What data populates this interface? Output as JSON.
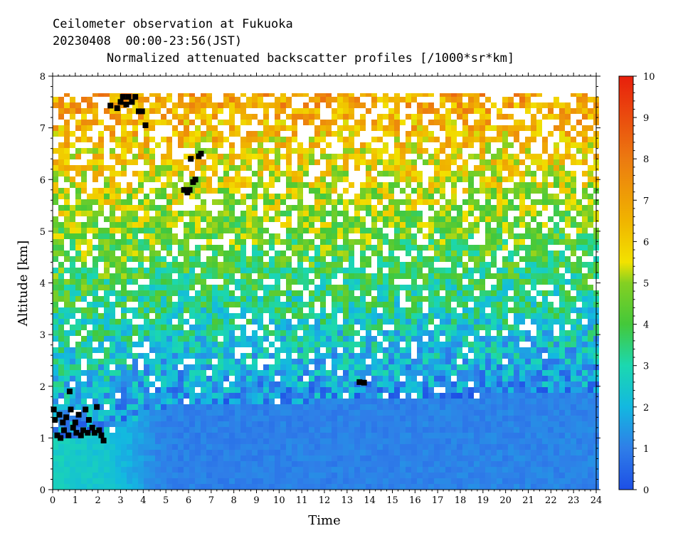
{
  "header": {
    "line1": "Ceilometer observation at Fukuoka",
    "line2": "20230408  00:00-23:56(JST)",
    "line3": "Normalized attenuated backscatter profiles [/1000*sr*km]"
  },
  "chart_data": {
    "type": "heatmap",
    "title": "Normalized attenuated backscatter profiles [/1000*sr*km]",
    "xlabel": "Time",
    "ylabel": "Altitude [km]",
    "xlim": [
      0,
      24
    ],
    "ylim": [
      0,
      8
    ],
    "x_ticks": [
      "0",
      "1",
      "2",
      "3",
      "4",
      "5",
      "6",
      "7",
      "8",
      "9",
      "10",
      "11",
      "12",
      "13",
      "14",
      "15",
      "16",
      "17",
      "18",
      "19",
      "20",
      "21",
      "22",
      "23",
      "24"
    ],
    "y_ticks": [
      "0",
      "1",
      "2",
      "3",
      "4",
      "5",
      "6",
      "7",
      "8"
    ],
    "data_top_altitude_km": 7.67,
    "colorbar": {
      "range": [
        0,
        10
      ],
      "ticks": [
        "0",
        "1",
        "2",
        "3",
        "4",
        "5",
        "6",
        "7",
        "8",
        "9",
        "10"
      ],
      "stops": [
        {
          "v": 0,
          "color": "#1d4fe6"
        },
        {
          "v": 1,
          "color": "#2f7ee8"
        },
        {
          "v": 2,
          "color": "#13b8e0"
        },
        {
          "v": 3,
          "color": "#1bd8b0"
        },
        {
          "v": 4,
          "color": "#44c83a"
        },
        {
          "v": 5,
          "color": "#84d022"
        },
        {
          "v": 5.5,
          "color": "#f2e200"
        },
        {
          "v": 6.5,
          "color": "#f0b400"
        },
        {
          "v": 8,
          "color": "#ec7a10"
        },
        {
          "v": 10,
          "color": "#e81f0c"
        }
      ]
    },
    "background_profile": [
      {
        "t": 0,
        "bl_top": 1.0,
        "bl_value": 2.7
      },
      {
        "t": 2.5,
        "bl_top": 1.1,
        "bl_value": 2.3
      },
      {
        "t": 5,
        "bl_top": 1.6,
        "bl_value": 1.0
      },
      {
        "t": 24,
        "bl_top": 1.9,
        "bl_value": 1.1
      }
    ],
    "cloud_points": [
      {
        "t": 0.05,
        "alt": 1.55
      },
      {
        "t": 0.1,
        "alt": 1.35
      },
      {
        "t": 0.2,
        "alt": 1.05
      },
      {
        "t": 0.3,
        "alt": 1.45
      },
      {
        "t": 0.35,
        "alt": 1.0
      },
      {
        "t": 0.45,
        "alt": 1.3
      },
      {
        "t": 0.5,
        "alt": 1.15
      },
      {
        "t": 0.6,
        "alt": 1.4
      },
      {
        "t": 0.7,
        "alt": 1.05
      },
      {
        "t": 0.75,
        "alt": 1.9
      },
      {
        "t": 0.8,
        "alt": 1.55
      },
      {
        "t": 0.9,
        "alt": 1.2
      },
      {
        "t": 1.0,
        "alt": 1.3
      },
      {
        "t": 1.05,
        "alt": 1.1
      },
      {
        "t": 1.15,
        "alt": 1.45
      },
      {
        "t": 1.25,
        "alt": 1.05
      },
      {
        "t": 1.35,
        "alt": 1.15
      },
      {
        "t": 1.45,
        "alt": 1.55
      },
      {
        "t": 1.55,
        "alt": 1.1
      },
      {
        "t": 1.6,
        "alt": 1.35
      },
      {
        "t": 1.75,
        "alt": 1.2
      },
      {
        "t": 1.85,
        "alt": 1.1
      },
      {
        "t": 1.95,
        "alt": 1.6
      },
      {
        "t": 2.05,
        "alt": 1.15
      },
      {
        "t": 2.15,
        "alt": 1.05
      },
      {
        "t": 2.25,
        "alt": 0.95
      },
      {
        "t": 2.55,
        "alt": 7.43
      },
      {
        "t": 2.85,
        "alt": 7.38
      },
      {
        "t": 3.0,
        "alt": 7.5
      },
      {
        "t": 3.1,
        "alt": 7.6
      },
      {
        "t": 3.25,
        "alt": 7.45
      },
      {
        "t": 3.35,
        "alt": 7.6
      },
      {
        "t": 3.5,
        "alt": 7.5
      },
      {
        "t": 3.65,
        "alt": 7.6
      },
      {
        "t": 3.8,
        "alt": 7.32
      },
      {
        "t": 3.95,
        "alt": 7.32
      },
      {
        "t": 4.1,
        "alt": 7.05
      },
      {
        "t": 5.8,
        "alt": 5.8
      },
      {
        "t": 5.95,
        "alt": 5.75
      },
      {
        "t": 6.05,
        "alt": 5.8
      },
      {
        "t": 6.1,
        "alt": 6.4
      },
      {
        "t": 6.2,
        "alt": 5.95
      },
      {
        "t": 6.3,
        "alt": 6.0
      },
      {
        "t": 6.45,
        "alt": 6.45
      },
      {
        "t": 6.55,
        "alt": 6.5
      },
      {
        "t": 13.55,
        "alt": 2.08
      },
      {
        "t": 13.75,
        "alt": 2.07
      }
    ]
  }
}
